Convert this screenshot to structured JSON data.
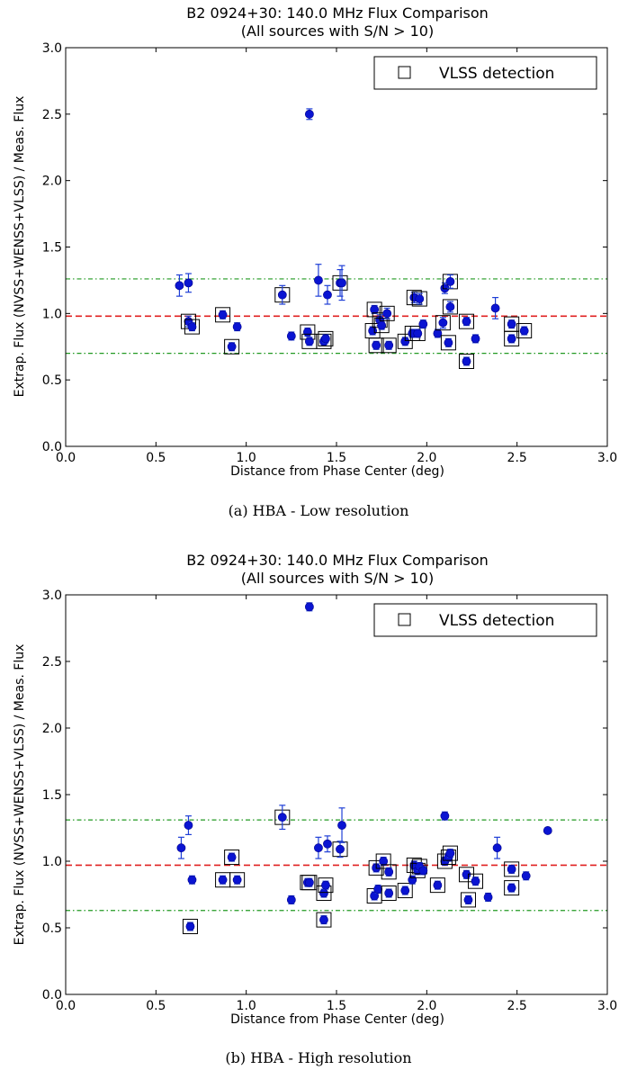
{
  "panels": [
    {
      "caption": "(a) HBA - Low resolution",
      "chart_data": {
        "type": "scatter",
        "title": "B2 0924+30: 140.0 MHz Flux Comparison",
        "subtitle": "(All sources with S/N > 10)",
        "xlabel": "Distance from Phase Center (deg)",
        "ylabel": "Extrap. Flux (NVSS+WENSS+VLSS) / Meas. Flux",
        "xlim": [
          0.0,
          3.0
        ],
        "ylim": [
          0.0,
          3.0
        ],
        "x_ticks": [
          "0.0",
          "0.5",
          "1.0",
          "1.5",
          "2.0",
          "2.5",
          "3.0"
        ],
        "y_ticks": [
          "0.0",
          "0.5",
          "1.0",
          "1.5",
          "2.0",
          "2.5",
          "3.0"
        ],
        "legend": {
          "label": "VLSS detection",
          "position": "top-right"
        },
        "colors": {
          "point": "#0a14d2",
          "errorbar": "#1f3fd6",
          "mean": "#e02020",
          "band": "#229922",
          "box": "#000000"
        },
        "reference_lines": {
          "mean": 0.98,
          "band_upper": 1.26,
          "band_lower": 0.7
        },
        "points": [
          {
            "x": 0.63,
            "y": 1.21,
            "e": 0.08,
            "box": false
          },
          {
            "x": 0.68,
            "y": 1.23,
            "e": 0.07,
            "box": false
          },
          {
            "x": 0.68,
            "y": 0.94,
            "e": 0.04,
            "box": true
          },
          {
            "x": 0.7,
            "y": 0.9,
            "e": 0.03,
            "box": true
          },
          {
            "x": 0.87,
            "y": 0.99,
            "e": 0.03,
            "box": true
          },
          {
            "x": 0.92,
            "y": 0.75,
            "e": 0.03,
            "box": true
          },
          {
            "x": 0.95,
            "y": 0.9,
            "e": 0.03,
            "box": false
          },
          {
            "x": 1.2,
            "y": 1.14,
            "e": 0.07,
            "box": true
          },
          {
            "x": 1.25,
            "y": 0.83,
            "e": 0.03,
            "box": false
          },
          {
            "x": 1.34,
            "y": 0.86,
            "e": 0.03,
            "box": true
          },
          {
            "x": 1.35,
            "y": 2.5,
            "e": 0.04,
            "box": false
          },
          {
            "x": 1.35,
            "y": 0.79,
            "e": 0.03,
            "box": true
          },
          {
            "x": 1.4,
            "y": 1.25,
            "e": 0.12,
            "box": false
          },
          {
            "x": 1.43,
            "y": 0.79,
            "e": 0.03,
            "box": true
          },
          {
            "x": 1.44,
            "y": 0.81,
            "e": 0.03,
            "box": true
          },
          {
            "x": 1.45,
            "y": 1.14,
            "e": 0.07,
            "box": false
          },
          {
            "x": 1.52,
            "y": 1.23,
            "e": 0.1,
            "box": true
          },
          {
            "x": 1.53,
            "y": 1.23,
            "e": 0.13,
            "box": false
          },
          {
            "x": 1.7,
            "y": 0.87,
            "e": 0.03,
            "box": true
          },
          {
            "x": 1.71,
            "y": 1.03,
            "e": 0.03,
            "box": true
          },
          {
            "x": 1.72,
            "y": 0.76,
            "e": 0.03,
            "box": true
          },
          {
            "x": 1.74,
            "y": 0.95,
            "e": 0.04,
            "box": true
          },
          {
            "x": 1.75,
            "y": 0.91,
            "e": 0.03,
            "box": true
          },
          {
            "x": 1.78,
            "y": 1.0,
            "e": 0.04,
            "box": true
          },
          {
            "x": 1.79,
            "y": 0.76,
            "e": 0.03,
            "box": true
          },
          {
            "x": 1.88,
            "y": 0.79,
            "e": 0.03,
            "box": true
          },
          {
            "x": 1.92,
            "y": 0.85,
            "e": 0.03,
            "box": true
          },
          {
            "x": 1.93,
            "y": 1.12,
            "e": 0.04,
            "box": true
          },
          {
            "x": 1.95,
            "y": 0.85,
            "e": 0.03,
            "box": true
          },
          {
            "x": 1.96,
            "y": 1.11,
            "e": 0.04,
            "box": true
          },
          {
            "x": 1.98,
            "y": 0.92,
            "e": 0.03,
            "box": false
          },
          {
            "x": 2.06,
            "y": 0.85,
            "e": 0.03,
            "box": false
          },
          {
            "x": 2.09,
            "y": 0.93,
            "e": 0.04,
            "box": true
          },
          {
            "x": 2.1,
            "y": 1.19,
            "e": 0.04,
            "box": false
          },
          {
            "x": 2.12,
            "y": 0.78,
            "e": 0.03,
            "box": true
          },
          {
            "x": 2.13,
            "y": 1.05,
            "e": 0.04,
            "box": true
          },
          {
            "x": 2.13,
            "y": 1.24,
            "e": 0.05,
            "box": true
          },
          {
            "x": 2.22,
            "y": 0.94,
            "e": 0.03,
            "box": true
          },
          {
            "x": 2.22,
            "y": 0.64,
            "e": 0.03,
            "box": true
          },
          {
            "x": 2.27,
            "y": 0.81,
            "e": 0.03,
            "box": false
          },
          {
            "x": 2.38,
            "y": 1.04,
            "e": 0.08,
            "box": false
          },
          {
            "x": 2.47,
            "y": 0.81,
            "e": 0.03,
            "box": true
          },
          {
            "x": 2.47,
            "y": 0.92,
            "e": 0.03,
            "box": true
          },
          {
            "x": 2.54,
            "y": 0.87,
            "e": 0.03,
            "box": true
          }
        ]
      }
    },
    {
      "caption": "(b) HBA - High resolution",
      "chart_data": {
        "type": "scatter",
        "title": "B2 0924+30: 140.0 MHz Flux Comparison",
        "subtitle": "(All sources with S/N > 10)",
        "xlabel": "Distance from Phase Center (deg)",
        "ylabel": "Extrap. Flux (NVSS+WENSS+VLSS) / Meas. Flux",
        "xlim": [
          0.0,
          3.0
        ],
        "ylim": [
          0.0,
          3.0
        ],
        "x_ticks": [
          "0.0",
          "0.5",
          "1.0",
          "1.5",
          "2.0",
          "2.5",
          "3.0"
        ],
        "y_ticks": [
          "0.0",
          "0.5",
          "1.0",
          "1.5",
          "2.0",
          "2.5",
          "3.0"
        ],
        "legend": {
          "label": "VLSS detection",
          "position": "top-right"
        },
        "colors": {
          "point": "#0a14d2",
          "errorbar": "#1f3fd6",
          "mean": "#e02020",
          "band": "#229922",
          "box": "#000000"
        },
        "reference_lines": {
          "mean": 0.97,
          "band_upper": 1.31,
          "band_lower": 0.63
        },
        "points": [
          {
            "x": 0.64,
            "y": 1.1,
            "e": 0.08,
            "box": false
          },
          {
            "x": 0.68,
            "y": 1.27,
            "e": 0.07,
            "box": false
          },
          {
            "x": 0.69,
            "y": 0.51,
            "e": 0.03,
            "box": true
          },
          {
            "x": 0.7,
            "y": 0.86,
            "e": 0.03,
            "box": false
          },
          {
            "x": 0.87,
            "y": 0.86,
            "e": 0.03,
            "box": true
          },
          {
            "x": 0.92,
            "y": 1.03,
            "e": 0.03,
            "box": true
          },
          {
            "x": 0.95,
            "y": 0.86,
            "e": 0.03,
            "box": true
          },
          {
            "x": 1.2,
            "y": 1.33,
            "e": 0.09,
            "box": true
          },
          {
            "x": 1.25,
            "y": 0.71,
            "e": 0.03,
            "box": false
          },
          {
            "x": 1.34,
            "y": 0.84,
            "e": 0.03,
            "box": true
          },
          {
            "x": 1.35,
            "y": 2.91,
            "e": 0.03,
            "box": false
          },
          {
            "x": 1.35,
            "y": 0.84,
            "e": 0.03,
            "box": true
          },
          {
            "x": 1.4,
            "y": 1.1,
            "e": 0.08,
            "box": false
          },
          {
            "x": 1.43,
            "y": 0.56,
            "e": 0.03,
            "box": true
          },
          {
            "x": 1.43,
            "y": 0.76,
            "e": 0.03,
            "box": true
          },
          {
            "x": 1.44,
            "y": 0.82,
            "e": 0.03,
            "box": true
          },
          {
            "x": 1.45,
            "y": 1.13,
            "e": 0.06,
            "box": false
          },
          {
            "x": 1.52,
            "y": 1.09,
            "e": 0.06,
            "box": true
          },
          {
            "x": 1.53,
            "y": 1.27,
            "e": 0.13,
            "box": false
          },
          {
            "x": 1.71,
            "y": 0.74,
            "e": 0.03,
            "box": true
          },
          {
            "x": 1.72,
            "y": 0.95,
            "e": 0.03,
            "box": true
          },
          {
            "x": 1.73,
            "y": 0.79,
            "e": 0.03,
            "box": false
          },
          {
            "x": 1.76,
            "y": 1.0,
            "e": 0.03,
            "box": true
          },
          {
            "x": 1.79,
            "y": 0.92,
            "e": 0.03,
            "box": true
          },
          {
            "x": 1.79,
            "y": 0.76,
            "e": 0.03,
            "box": true
          },
          {
            "x": 1.88,
            "y": 0.78,
            "e": 0.03,
            "box": true
          },
          {
            "x": 1.92,
            "y": 0.86,
            "e": 0.03,
            "box": false
          },
          {
            "x": 1.93,
            "y": 0.97,
            "e": 0.03,
            "box": true
          },
          {
            "x": 1.95,
            "y": 0.93,
            "e": 0.03,
            "box": true
          },
          {
            "x": 1.96,
            "y": 0.96,
            "e": 0.03,
            "box": true
          },
          {
            "x": 1.98,
            "y": 0.93,
            "e": 0.03,
            "box": false
          },
          {
            "x": 2.06,
            "y": 0.82,
            "e": 0.03,
            "box": true
          },
          {
            "x": 2.1,
            "y": 1.34,
            "e": 0.03,
            "box": false
          },
          {
            "x": 2.1,
            "y": 1.0,
            "e": 0.03,
            "box": true
          },
          {
            "x": 2.12,
            "y": 1.03,
            "e": 0.03,
            "box": true
          },
          {
            "x": 2.13,
            "y": 1.06,
            "e": 0.03,
            "box": true
          },
          {
            "x": 2.22,
            "y": 0.9,
            "e": 0.03,
            "box": true
          },
          {
            "x": 2.23,
            "y": 0.71,
            "e": 0.03,
            "box": true
          },
          {
            "x": 2.27,
            "y": 0.85,
            "e": 0.03,
            "box": true
          },
          {
            "x": 2.34,
            "y": 0.73,
            "e": 0.03,
            "box": false
          },
          {
            "x": 2.39,
            "y": 1.1,
            "e": 0.08,
            "box": false
          },
          {
            "x": 2.47,
            "y": 0.8,
            "e": 0.03,
            "box": true
          },
          {
            "x": 2.47,
            "y": 0.94,
            "e": 0.03,
            "box": true
          },
          {
            "x": 2.55,
            "y": 0.89,
            "e": 0.03,
            "box": false
          },
          {
            "x": 2.67,
            "y": 1.23,
            "e": 0.02,
            "box": false
          }
        ]
      }
    }
  ]
}
